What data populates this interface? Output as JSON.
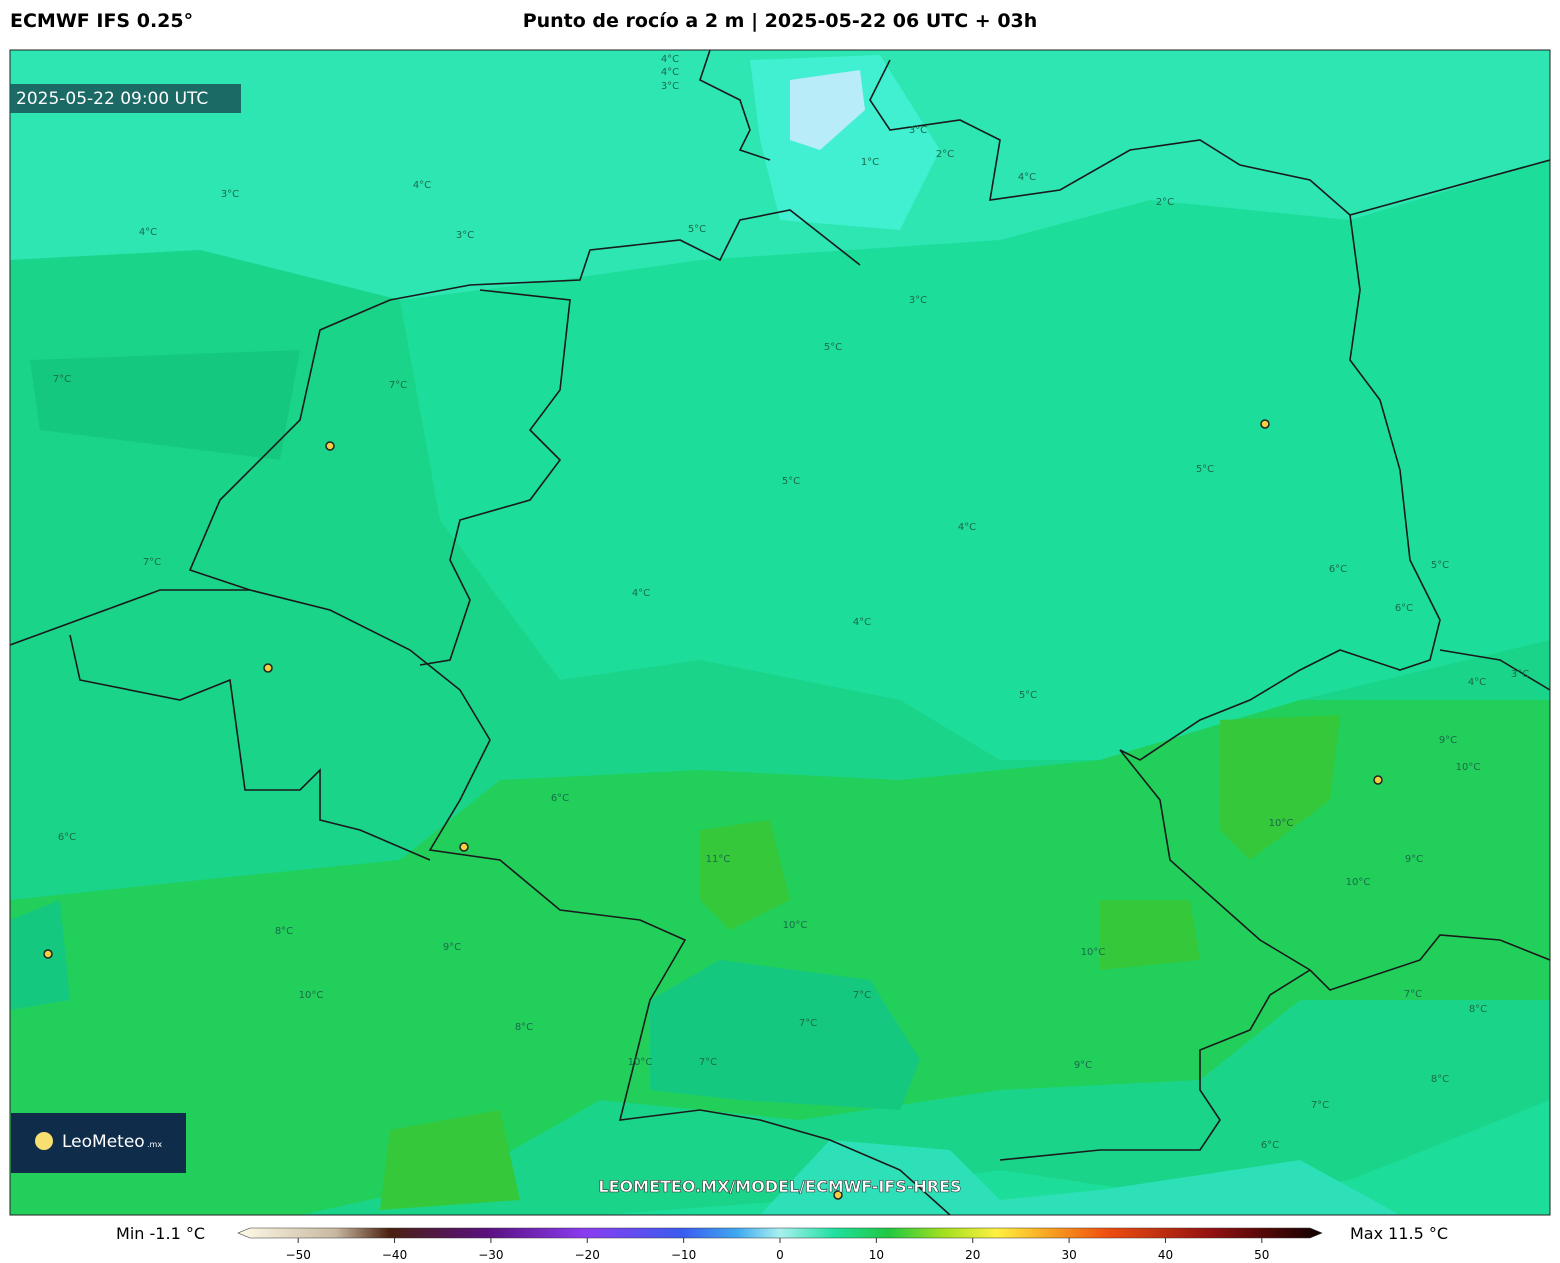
{
  "header": {
    "model": "ECMWF IFS 0.25°",
    "title": "Punto de rocío a 2 m | 2025-05-22 06 UTC + 03h"
  },
  "map": {
    "valid_time": "2025-05-22 09:00 UTC",
    "watermark": "LEOMETEO.MX/MODEL/ECMWF-IFS-HRES",
    "contour_labels": [
      "4°C",
      "4°C",
      "3°C",
      "3°C",
      "4°C",
      "4°C",
      "3°C",
      "5°C",
      "1°C",
      "3°C",
      "2°C",
      "4°C",
      "2°C",
      "3°C",
      "5°C",
      "7°C",
      "7°C",
      "5°C",
      "5°C",
      "4°C",
      "4°C",
      "4°C",
      "6°C",
      "5°C",
      "6°C",
      "7°C",
      "6°C",
      "6°C",
      "5°C",
      "11°C",
      "10°C",
      "9°C",
      "10°C",
      "10°C",
      "10°C",
      "8°C",
      "9°C",
      "10°C",
      "8°C",
      "7°C",
      "7°C",
      "7°C",
      "10°C",
      "9°C",
      "7°C",
      "8°C",
      "7°C",
      "6°C",
      "4°C",
      "3°C",
      "9°C",
      "8°C",
      "10°C"
    ]
  },
  "logo": {
    "name": "LeoMeteo",
    "suffix": ".mx"
  },
  "colorbar": {
    "min_label": "Min -1.1 °C",
    "max_label": "Max 11.5 °C",
    "lim": [
      -55,
      55
    ],
    "ticks": [
      {
        "value": -50,
        "label": "−50"
      },
      {
        "value": -40,
        "label": "−40"
      },
      {
        "value": -30,
        "label": "−30"
      },
      {
        "value": -20,
        "label": "−20"
      },
      {
        "value": -10,
        "label": "−10"
      },
      0,
      10,
      20,
      30,
      40,
      50
    ]
  }
}
